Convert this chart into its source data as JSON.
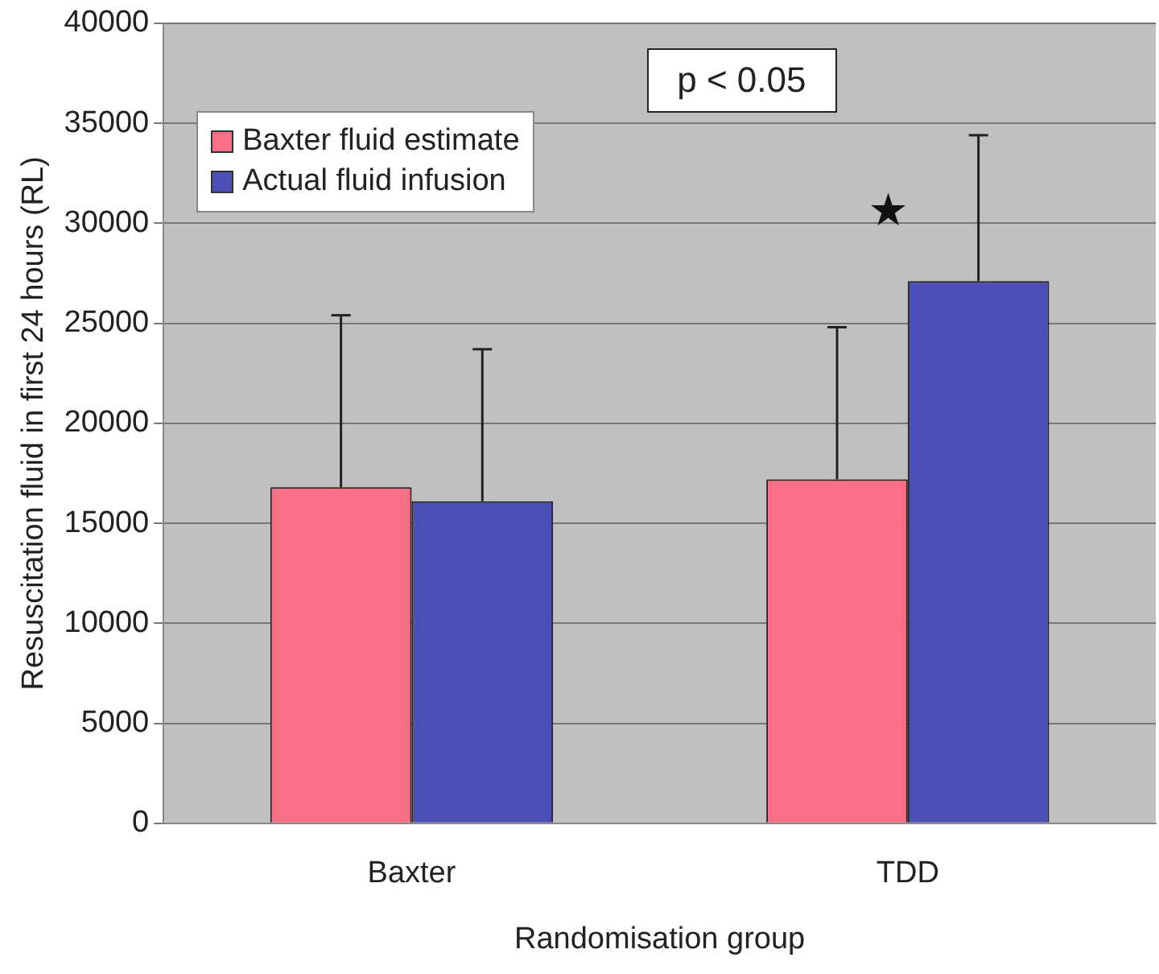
{
  "chart_data": {
    "type": "bar",
    "xlabel": "Randomisation group",
    "ylabel": "Resuscitation fluid in first 24 hours (RL)",
    "categories": [
      "Baxter",
      "TDD"
    ],
    "series": [
      {
        "name": "Baxter fluid estimate",
        "color": "#fb6f86",
        "values": [
          16800,
          17200
        ],
        "errors": [
          [
            16800,
            25400
          ],
          [
            17200,
            24800
          ]
        ]
      },
      {
        "name": "Actual fluid infusion",
        "color": "#4b4fb5",
        "values": [
          16100,
          27100
        ],
        "errors": [
          [
            16100,
            23700
          ],
          [
            27100,
            34400
          ]
        ]
      }
    ],
    "ylim": [
      0,
      40000
    ],
    "yticks": [
      0,
      5000,
      10000,
      15000,
      20000,
      25000,
      30000,
      35000,
      40000
    ],
    "grid": "y",
    "legend": "top left",
    "annotations": [
      "p < 0.05",
      "★"
    ]
  }
}
